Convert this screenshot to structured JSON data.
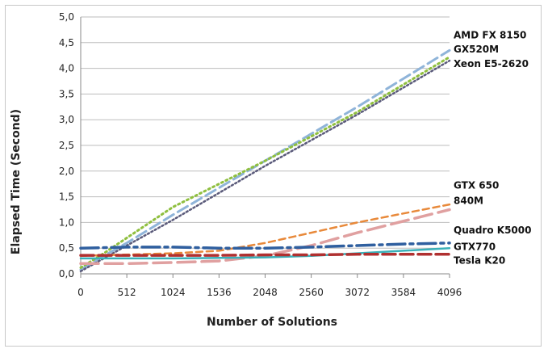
{
  "chart_data": {
    "type": "line",
    "title": "",
    "xlabel": "Number of Solutions",
    "ylabel": "Elapsed Time (Second)",
    "xlim": [
      0,
      4096
    ],
    "ylim": [
      0,
      5
    ],
    "x_ticks": [
      0,
      512,
      1024,
      1536,
      2048,
      2560,
      3072,
      3584,
      4096
    ],
    "x_tick_labels": [
      "0",
      "512",
      "1024",
      "1536",
      "2048",
      "2560",
      "3072",
      "3584",
      "4096"
    ],
    "y_ticks": [
      0,
      0.5,
      1,
      1.5,
      2,
      2.5,
      3,
      3.5,
      4,
      4.5,
      5
    ],
    "y_tick_labels": [
      "0,0",
      "0,5",
      "1,0",
      "1,5",
      "2,0",
      "2,5",
      "3,0",
      "3,5",
      "4,0",
      "4,5",
      "5,0"
    ],
    "grid": "horizontal",
    "series": [
      {
        "name": "AMD FX 8150",
        "color": "#8fb4d9",
        "dash": "14,6",
        "width": 3,
        "x": [
          0,
          256,
          512,
          1024,
          2048,
          3072,
          4096
        ],
        "y": [
          0.08,
          0.35,
          0.6,
          1.15,
          2.2,
          3.25,
          4.35
        ]
      },
      {
        "name": "GX520M",
        "color": "#8fbf3f",
        "dash": "2,4",
        "width": 3,
        "x": [
          0,
          256,
          512,
          1024,
          2048,
          3072,
          4096
        ],
        "y": [
          0.12,
          0.4,
          0.7,
          1.3,
          2.2,
          3.15,
          4.22
        ]
      },
      {
        "name": "Xeon E5-2620",
        "color": "#5a5a7a",
        "dash": "2,3",
        "width": 2.5,
        "x": [
          0,
          256,
          512,
          1024,
          2048,
          3072,
          4096
        ],
        "y": [
          0.05,
          0.3,
          0.55,
          1.05,
          2.1,
          3.1,
          4.15
        ]
      },
      {
        "name": "GTX 650",
        "color": "#e8893a",
        "dash": "8,5",
        "width": 2.5,
        "x": [
          0,
          1024,
          1536,
          2048,
          2560,
          3072,
          4096
        ],
        "y": [
          0.35,
          0.4,
          0.45,
          0.6,
          0.8,
          1.0,
          1.35
        ]
      },
      {
        "name": "840M",
        "color": "#e0a0a0",
        "dash": "22,8",
        "width": 3.5,
        "x": [
          0,
          512,
          1024,
          1536,
          2048,
          2560,
          3072,
          4096
        ],
        "y": [
          0.2,
          0.2,
          0.22,
          0.25,
          0.35,
          0.55,
          0.8,
          1.25
        ]
      },
      {
        "name": "Quadro K5000",
        "color": "#2f5f9f",
        "dash": "22,6,4,6",
        "width": 3.5,
        "x": [
          0,
          512,
          1024,
          1536,
          2048,
          2560,
          3072,
          3584,
          4096
        ],
        "y": [
          0.5,
          0.52,
          0.52,
          0.5,
          0.5,
          0.52,
          0.55,
          0.58,
          0.6
        ]
      },
      {
        "name": "GTX770",
        "color": "#3ab0b8",
        "dash": "",
        "width": 2.5,
        "x": [
          0,
          512,
          1024,
          1536,
          2048,
          2560,
          3072,
          3584,
          4096
        ],
        "y": [
          0.3,
          0.3,
          0.3,
          0.31,
          0.32,
          0.35,
          0.4,
          0.45,
          0.5
        ]
      },
      {
        "name": "Tesla K20",
        "color": "#b03030",
        "dash": "16,6",
        "width": 3.5,
        "x": [
          0,
          512,
          1024,
          1536,
          2048,
          2560,
          3072,
          3584,
          4096
        ],
        "y": [
          0.36,
          0.36,
          0.36,
          0.36,
          0.37,
          0.37,
          0.38,
          0.38,
          0.38
        ]
      }
    ],
    "series_labels": [
      "AMD FX 8150",
      "GX520M",
      "Xeon E5-2620",
      "GTX 650",
      "840M",
      "Quadro K5000",
      "GTX770",
      "Tesla K20"
    ],
    "label_values": [
      4.65,
      4.37,
      4.09,
      1.72,
      1.42,
      0.85,
      0.53,
      0.26
    ]
  }
}
